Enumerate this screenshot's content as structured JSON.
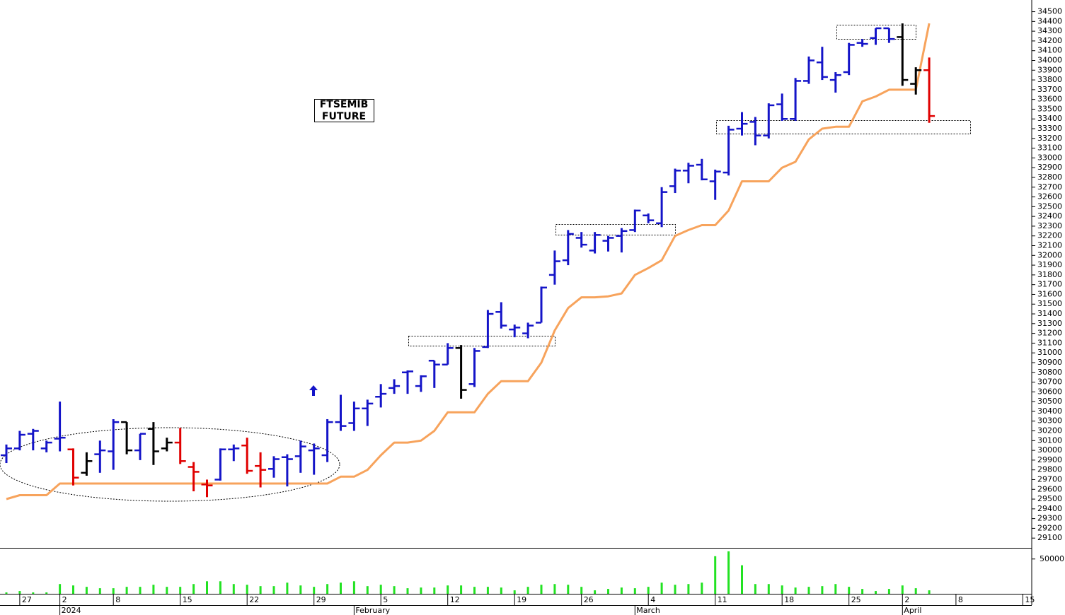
{
  "chart_data": {
    "type": "ohlc",
    "annotation_lines": [
      "FTSEMIB",
      "FUTURE"
    ],
    "categories": [
      null,
      "27",
      null,
      null,
      "2",
      null,
      null,
      null,
      "8",
      null,
      null,
      null,
      null,
      "15",
      null,
      null,
      null,
      null,
      "22",
      null,
      null,
      null,
      null,
      "29",
      null,
      null,
      null,
      null,
      "5",
      null,
      null,
      null,
      null,
      "12",
      null,
      null,
      null,
      null,
      "19",
      null,
      null,
      null,
      null,
      "26",
      null,
      null,
      null,
      null,
      "4",
      null,
      null,
      null,
      null,
      "11",
      null,
      null,
      null,
      null,
      "18",
      null,
      null,
      null,
      null,
      "25",
      null,
      null,
      null,
      "2",
      null,
      null,
      null,
      "8",
      null,
      null,
      null,
      null,
      "15"
    ],
    "month_labels": [
      null,
      null,
      null,
      null,
      "2024",
      null,
      null,
      null,
      null,
      null,
      null,
      null,
      null,
      null,
      null,
      null,
      null,
      null,
      null,
      null,
      null,
      null,
      null,
      null,
      null,
      null,
      "February",
      null,
      null,
      null,
      null,
      null,
      null,
      null,
      null,
      null,
      null,
      null,
      null,
      null,
      null,
      null,
      null,
      null,
      null,
      null,
      null,
      "March",
      null,
      null,
      null,
      null,
      null,
      null,
      null,
      null,
      null,
      null,
      null,
      null,
      null,
      null,
      null,
      null,
      null,
      null,
      null,
      "April",
      null,
      null,
      null,
      null,
      null,
      null,
      null,
      null,
      null
    ],
    "open": [
      29950,
      30020,
      30170,
      30020,
      30120,
      30010,
      29770,
      29960,
      29990,
      30290,
      30000,
      30220,
      30020,
      30080,
      29830,
      29650,
      29700,
      30010,
      30050,
      29840,
      29810,
      29930,
      29940,
      30000,
      29950,
      30290,
      30280,
      30430,
      30550,
      30640,
      30800,
      30660,
      30920,
      30880,
      31050,
      30680,
      31060,
      31420,
      31240,
      31200,
      31310,
      31800,
      31950,
      32180,
      32050,
      32150,
      32200,
      32260,
      32410,
      32330,
      32710,
      32870,
      32930,
      32760,
      32850,
      33300,
      33370,
      33230,
      33550,
      33400,
      33790,
      33980,
      33800,
      33880,
      34180,
      34230,
      34330,
      34240,
      33760,
      33900,
      null,
      null,
      null,
      null,
      null,
      null,
      null
    ],
    "high": [
      30060,
      30200,
      30220,
      30100,
      30500,
      30020,
      29980,
      30100,
      30320,
      30290,
      30170,
      30290,
      30130,
      30230,
      29880,
      29700,
      30020,
      30060,
      30130,
      29980,
      29940,
      29960,
      30100,
      30070,
      30320,
      30570,
      30500,
      30520,
      30680,
      30730,
      30820,
      30770,
      30920,
      31100,
      31080,
      31050,
      31440,
      31520,
      31290,
      31310,
      31680,
      32050,
      32260,
      32240,
      32240,
      32200,
      32280,
      32470,
      32430,
      32700,
      32890,
      32950,
      32990,
      32880,
      33330,
      33470,
      33420,
      33560,
      33660,
      33820,
      34040,
      34140,
      33880,
      34180,
      34220,
      34330,
      34330,
      34380,
      33930,
      34030,
      null,
      null,
      null,
      null,
      null,
      null,
      null
    ],
    "low": [
      29870,
      30000,
      30000,
      29980,
      29990,
      29640,
      29740,
      29770,
      29800,
      29960,
      29900,
      29850,
      29990,
      29860,
      29580,
      29520,
      29690,
      29890,
      29760,
      29620,
      29720,
      29630,
      29770,
      29750,
      29880,
      30200,
      30200,
      30250,
      30440,
      30580,
      30580,
      30600,
      30640,
      30880,
      30530,
      30650,
      31050,
      31250,
      31160,
      31150,
      31310,
      31700,
      31900,
      32080,
      32020,
      32040,
      32030,
      32240,
      32330,
      32290,
      32640,
      32740,
      32770,
      32570,
      32820,
      33230,
      33130,
      33200,
      33380,
      33380,
      33760,
      33800,
      33670,
      33850,
      34140,
      34160,
      34180,
      33740,
      33650,
      33360,
      null,
      null,
      null,
      null,
      null,
      null,
      null
    ],
    "close": [
      30020,
      30160,
      30200,
      30080,
      30130,
      29720,
      29890,
      30000,
      30290,
      30000,
      30170,
      29990,
      30080,
      29890,
      29780,
      29640,
      30010,
      30020,
      29790,
      29800,
      29910,
      29910,
      30040,
      30020,
      30290,
      30250,
      30430,
      30480,
      30580,
      30660,
      30810,
      30760,
      30880,
      31050,
      30620,
      31020,
      31400,
      31280,
      31260,
      31280,
      31670,
      31940,
      32220,
      32110,
      32210,
      32180,
      32250,
      32460,
      32360,
      32650,
      32870,
      32920,
      32780,
      32860,
      33290,
      33350,
      33230,
      33540,
      33400,
      33790,
      34000,
      33830,
      33850,
      34160,
      34170,
      34330,
      34220,
      33800,
      33900,
      33430,
      null,
      null,
      null,
      null,
      null,
      null,
      null
    ],
    "bar_colors": [
      "#1414c8",
      "#1414c8",
      "#1414c8",
      "#1414c8",
      "#1414c8",
      "#e00000",
      "#000000",
      "#1414c8",
      "#1414c8",
      "#000000",
      "#1414c8",
      "#000000",
      "#000000",
      "#e00000",
      "#e00000",
      "#e00000",
      "#1414c8",
      "#1414c8",
      "#e00000",
      "#e00000",
      "#1414c8",
      "#1414c8",
      "#1414c8",
      "#1414c8",
      "#1414c8",
      "#1414c8",
      "#1414c8",
      "#1414c8",
      "#1414c8",
      "#1414c8",
      "#1414c8",
      "#1414c8",
      "#1414c8",
      "#1414c8",
      "#000000",
      "#1414c8",
      "#1414c8",
      "#1414c8",
      "#1414c8",
      "#1414c8",
      "#1414c8",
      "#1414c8",
      "#1414c8",
      "#1414c8",
      "#1414c8",
      "#1414c8",
      "#1414c8",
      "#1414c8",
      "#1414c8",
      "#1414c8",
      "#1414c8",
      "#1414c8",
      "#1414c8",
      "#1414c8",
      "#1414c8",
      "#1414c8",
      "#1414c8",
      "#1414c8",
      "#1414c8",
      "#1414c8",
      "#1414c8",
      "#1414c8",
      "#1414c8",
      "#1414c8",
      "#1414c8",
      "#1414c8",
      "#1414c8",
      "#000000",
      "#000000",
      "#e00000",
      null,
      null,
      null,
      null,
      null,
      null,
      null
    ],
    "trend": [
      29500,
      29540,
      29540,
      29540,
      29660,
      29660,
      29660,
      29660,
      29660,
      29660,
      29660,
      29660,
      29660,
      29660,
      29660,
      29660,
      29660,
      29660,
      29660,
      29660,
      29660,
      29660,
      29660,
      29660,
      29660,
      29730,
      29730,
      29800,
      29950,
      30080,
      30080,
      30100,
      30200,
      30390,
      30390,
      30390,
      30580,
      30710,
      30710,
      30710,
      30900,
      31230,
      31460,
      31570,
      31570,
      31580,
      31610,
      31800,
      31870,
      31950,
      32200,
      32260,
      32310,
      32310,
      32460,
      32760,
      32760,
      32760,
      32900,
      32960,
      33190,
      33300,
      33320,
      33320,
      33580,
      33630,
      33700,
      33700,
      33700,
      34380,
      null,
      null,
      null,
      null,
      null,
      null,
      null
    ],
    "trend_color": "#f7a35c",
    "ylim": [
      29000,
      34620
    ],
    "yticks": [
      29100,
      29200,
      29300,
      29400,
      29500,
      29600,
      29700,
      29800,
      29900,
      30000,
      30100,
      30200,
      30300,
      30400,
      30500,
      30600,
      30700,
      30800,
      30900,
      31000,
      31100,
      31200,
      31300,
      31400,
      31500,
      31600,
      31700,
      31800,
      31900,
      32000,
      32100,
      32200,
      32300,
      32400,
      32500,
      32600,
      32700,
      32800,
      32900,
      33000,
      33100,
      33200,
      33300,
      33400,
      33500,
      33600,
      33700,
      33800,
      33900,
      34000,
      34100,
      34200,
      34300,
      34400,
      34500
    ],
    "volume": [
      2000,
      4000,
      2000,
      2000,
      14000,
      12000,
      10000,
      8000,
      8000,
      10000,
      10000,
      13000,
      10000,
      10000,
      14000,
      18000,
      18000,
      14000,
      13000,
      11000,
      11000,
      16000,
      12000,
      10000,
      14000,
      16000,
      18000,
      11000,
      13000,
      11000,
      8000,
      9000,
      9000,
      12000,
      12000,
      10000,
      10000,
      9000,
      5000,
      10000,
      13000,
      14000,
      13000,
      10000,
      5000,
      7000,
      9000,
      8000,
      10000,
      16000,
      13000,
      14000,
      16000,
      54000,
      61000,
      41000,
      14000,
      14000,
      12000,
      9000,
      10000,
      11000,
      14000,
      10000,
      7000,
      4000,
      7000,
      12000,
      8000,
      5000,
      null,
      null,
      null,
      null,
      null,
      null,
      null
    ],
    "volume_color": "#22e222",
    "volume_ylim": [
      0,
      65000
    ],
    "volume_yticks": [
      50000
    ]
  }
}
